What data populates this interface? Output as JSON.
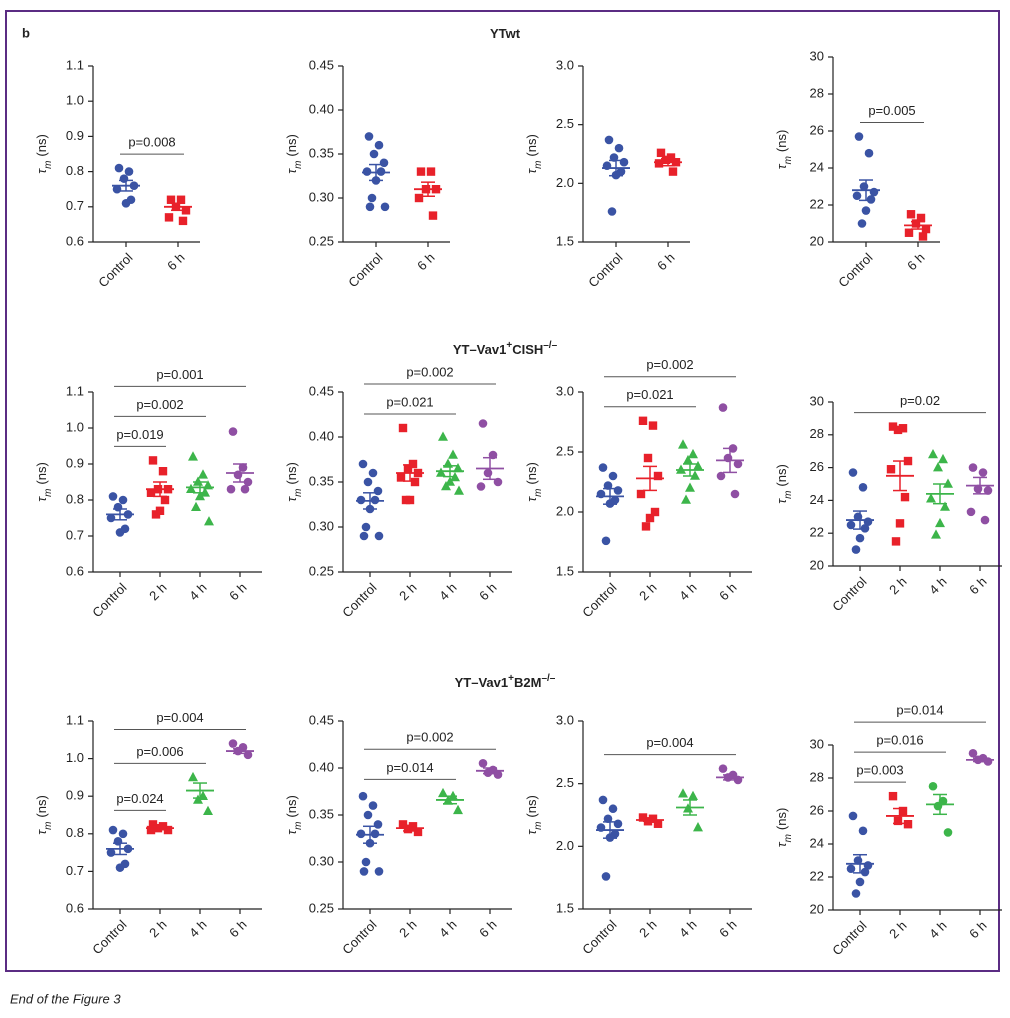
{
  "panel_label": "b",
  "caption": "End of the Figure 3",
  "row_titles": [
    [
      {
        "t": "YTwt"
      }
    ],
    [
      {
        "t": "YT–Vav1"
      },
      {
        "sup": "+"
      },
      {
        "t": "CISH"
      },
      {
        "sup": "–/–"
      }
    ],
    [
      {
        "t": "YT–Vav1"
      },
      {
        "sup": "+"
      },
      {
        "t": "B2M"
      },
      {
        "sup": "–/–"
      }
    ]
  ],
  "chart_data": [
    {
      "type": "dot",
      "ylabel": {
        "symbol": "τ",
        "subscript": "m",
        "unit": "(ns)"
      },
      "ylim": [
        0.6,
        1.1
      ],
      "yticks": [
        0.6,
        0.7,
        0.8,
        0.9,
        {
          "value": 1.0,
          "label": "1.0"
        },
        1.1
      ],
      "groups": [
        {
          "name": "Control",
          "color": "#3a53a4",
          "marker": "circle",
          "values": [
            0.81,
            0.8,
            0.78,
            0.76,
            0.75,
            0.72,
            0.71
          ],
          "mean": 0.76,
          "sem": 0.015
        },
        {
          "name": "6 h",
          "color": "#e8212a",
          "marker": "square",
          "values": [
            0.72,
            0.72,
            0.7,
            0.69,
            0.67,
            0.66
          ],
          "mean": 0.7,
          "sem": 0.01
        }
      ],
      "brackets": [
        {
          "between": [
            "Control",
            "6 h"
          ],
          "label": "p=0.008"
        }
      ]
    },
    {
      "type": "dot",
      "ylabel": {
        "symbol": "τ",
        "subscript": "m",
        "unit": "(ns)"
      },
      "ylim": [
        0.25,
        0.45
      ],
      "yticks": [
        0.25,
        {
          "value": 0.3,
          "label": "0.30"
        },
        0.35,
        {
          "value": 0.4,
          "label": "0.40"
        },
        0.45
      ],
      "groups": [
        {
          "name": "Control",
          "color": "#3a53a4",
          "marker": "circle",
          "values": [
            0.37,
            0.36,
            0.35,
            0.34,
            0.33,
            0.33,
            0.32,
            0.3,
            0.29,
            0.29
          ],
          "mean": 0.329,
          "sem": 0.009
        },
        {
          "name": "6 h",
          "color": "#e8212a",
          "marker": "square",
          "values": [
            0.33,
            0.33,
            0.31,
            0.31,
            0.3,
            0.28
          ],
          "mean": 0.31,
          "sem": 0.008
        }
      ],
      "brackets": []
    },
    {
      "type": "dot",
      "ylabel": {
        "symbol": "τ",
        "subscript": "m",
        "unit": "(ns)"
      },
      "ylim": [
        1.5,
        3.0
      ],
      "yticks": [
        1.5,
        {
          "value": 2,
          "label": "2.0"
        },
        2.5,
        {
          "value": 3,
          "label": "3.0"
        }
      ],
      "groups": [
        {
          "name": "Control",
          "color": "#3a53a4",
          "marker": "circle",
          "values": [
            2.37,
            2.3,
            2.22,
            2.18,
            2.15,
            2.1,
            2.07,
            1.76
          ],
          "mean": 2.13,
          "sem": 0.065
        },
        {
          "name": "6 h",
          "color": "#e8212a",
          "marker": "square",
          "values": [
            2.26,
            2.22,
            2.2,
            2.18,
            2.17,
            2.1
          ],
          "mean": 2.18,
          "sem": 0.03
        }
      ],
      "brackets": []
    },
    {
      "type": "dot",
      "ylabel": {
        "symbol": "τ",
        "subscript": "m",
        "unit": "(ns)"
      },
      "ylim": [
        20,
        30
      ],
      "yticks": [
        20,
        22,
        24,
        26,
        28,
        30
      ],
      "groups": [
        {
          "name": "Control",
          "color": "#3a53a4",
          "marker": "circle",
          "values": [
            25.7,
            24.8,
            23.0,
            22.7,
            22.5,
            22.3,
            21.7,
            21.0
          ],
          "mean": 22.8,
          "sem": 0.55
        },
        {
          "name": "6 h",
          "color": "#e8212a",
          "marker": "square",
          "values": [
            21.5,
            21.3,
            21.0,
            20.7,
            20.5,
            20.3
          ],
          "mean": 20.9,
          "sem": 0.2
        }
      ],
      "brackets": [
        {
          "between": [
            "Control",
            "6 h"
          ],
          "label": "p=0.005"
        }
      ]
    },
    {
      "type": "dot",
      "ylabel": {
        "symbol": "τ",
        "subscript": "m",
        "unit": "(ns)"
      },
      "ylim": [
        0.6,
        1.1
      ],
      "yticks": [
        0.6,
        0.7,
        0.8,
        0.9,
        {
          "value": 1.0,
          "label": "1.0"
        },
        1.1
      ],
      "groups": [
        {
          "name": "Control",
          "color": "#3a53a4",
          "marker": "circle",
          "values": [
            0.81,
            0.8,
            0.78,
            0.76,
            0.75,
            0.72,
            0.71
          ],
          "mean": 0.76,
          "sem": 0.015
        },
        {
          "name": "2 h",
          "color": "#e8212a",
          "marker": "square",
          "values": [
            0.91,
            0.88,
            0.83,
            0.83,
            0.82,
            0.8,
            0.77,
            0.76
          ],
          "mean": 0.83,
          "sem": 0.02
        },
        {
          "name": "4 h",
          "color": "#3cb54a",
          "marker": "triangle",
          "values": [
            0.92,
            0.87,
            0.85,
            0.84,
            0.83,
            0.82,
            0.81,
            0.78,
            0.74
          ],
          "mean": 0.835,
          "sem": 0.015
        },
        {
          "name": "6 h",
          "color": "#8f4fa3",
          "marker": "circle",
          "values": [
            0.99,
            0.89,
            0.87,
            0.85,
            0.83,
            0.83
          ],
          "mean": 0.875,
          "sem": 0.025
        }
      ],
      "brackets": [
        {
          "between": [
            "Control",
            "2 h"
          ],
          "label": "p=0.019"
        },
        {
          "between": [
            "Control",
            "4 h"
          ],
          "label": "p=0.002"
        },
        {
          "between": [
            "Control",
            "6 h"
          ],
          "label": "p=0.001"
        }
      ]
    },
    {
      "type": "dot",
      "ylabel": {
        "symbol": "τ",
        "subscript": "m",
        "unit": "(ns)"
      },
      "ylim": [
        0.25,
        0.45
      ],
      "yticks": [
        0.25,
        {
          "value": 0.3,
          "label": "0.30"
        },
        0.35,
        {
          "value": 0.4,
          "label": "0.40"
        },
        0.45
      ],
      "groups": [
        {
          "name": "Control",
          "color": "#3a53a4",
          "marker": "circle",
          "values": [
            0.37,
            0.36,
            0.35,
            0.34,
            0.33,
            0.33,
            0.32,
            0.3,
            0.29,
            0.29
          ],
          "mean": 0.329,
          "sem": 0.009
        },
        {
          "name": "2 h",
          "color": "#e8212a",
          "marker": "square",
          "values": [
            0.41,
            0.37,
            0.365,
            0.36,
            0.355,
            0.35,
            0.33,
            0.33
          ],
          "mean": 0.36,
          "sem": 0.009
        },
        {
          "name": "4 h",
          "color": "#3cb54a",
          "marker": "triangle",
          "values": [
            0.4,
            0.38,
            0.37,
            0.365,
            0.36,
            0.355,
            0.35,
            0.345,
            0.34
          ],
          "mean": 0.362,
          "sem": 0.006
        },
        {
          "name": "6 h",
          "color": "#8f4fa3",
          "marker": "circle",
          "values": [
            0.415,
            0.38,
            0.36,
            0.35,
            0.345
          ],
          "mean": 0.365,
          "sem": 0.012
        }
      ],
      "brackets": [
        {
          "between": [
            "Control",
            "4 h"
          ],
          "label": "p=0.021"
        },
        {
          "between": [
            "Control",
            "6 h"
          ],
          "label": "p=0.002"
        }
      ]
    },
    {
      "type": "dot",
      "ylabel": {
        "symbol": "τ",
        "subscript": "m",
        "unit": "(ns)"
      },
      "ylim": [
        1.5,
        3.0
      ],
      "yticks": [
        1.5,
        {
          "value": 2,
          "label": "2.0"
        },
        2.5,
        {
          "value": 3,
          "label": "3.0"
        }
      ],
      "groups": [
        {
          "name": "Control",
          "color": "#3a53a4",
          "marker": "circle",
          "values": [
            2.37,
            2.3,
            2.22,
            2.18,
            2.15,
            2.1,
            2.07,
            1.76
          ],
          "mean": 2.13,
          "sem": 0.065
        },
        {
          "name": "2 h",
          "color": "#e8212a",
          "marker": "square",
          "values": [
            2.76,
            2.72,
            2.45,
            2.3,
            2.15,
            2.0,
            1.95,
            1.88
          ],
          "mean": 2.28,
          "sem": 0.1
        },
        {
          "name": "4 h",
          "color": "#3cb54a",
          "marker": "triangle",
          "values": [
            2.56,
            2.48,
            2.43,
            2.38,
            2.35,
            2.3,
            2.2,
            2.1
          ],
          "mean": 2.35,
          "sem": 0.05
        },
        {
          "name": "6 h",
          "color": "#8f4fa3",
          "marker": "circle",
          "values": [
            2.87,
            2.53,
            2.45,
            2.4,
            2.3,
            2.15
          ],
          "mean": 2.43,
          "sem": 0.1
        }
      ],
      "brackets": [
        {
          "between": [
            "Control",
            "4 h"
          ],
          "label": "p=0.021"
        },
        {
          "between": [
            "Control",
            "6 h"
          ],
          "label": "p=0.002"
        }
      ]
    },
    {
      "type": "dot",
      "ylabel": {
        "symbol": "τ",
        "subscript": "m",
        "unit": "(ns)"
      },
      "ylim": [
        20,
        30
      ],
      "yticks": [
        20,
        22,
        24,
        26,
        28,
        30
      ],
      "groups": [
        {
          "name": "Control",
          "color": "#3a53a4",
          "marker": "circle",
          "values": [
            25.7,
            24.8,
            23.0,
            22.7,
            22.5,
            22.3,
            21.7,
            21.0
          ],
          "mean": 22.8,
          "sem": 0.55
        },
        {
          "name": "2 h",
          "color": "#e8212a",
          "marker": "square",
          "values": [
            28.5,
            28.4,
            28.3,
            26.4,
            25.9,
            24.2,
            22.6,
            21.5
          ],
          "mean": 25.5,
          "sem": 0.9
        },
        {
          "name": "4 h",
          "color": "#3cb54a",
          "marker": "triangle",
          "values": [
            26.8,
            26.5,
            26.0,
            25.0,
            24.1,
            23.6,
            22.6,
            21.9
          ],
          "mean": 24.4,
          "sem": 0.6
        },
        {
          "name": "6 h",
          "color": "#8f4fa3",
          "marker": "circle",
          "values": [
            26.0,
            25.7,
            24.7,
            24.6,
            23.3,
            22.8
          ],
          "mean": 24.9,
          "sem": 0.5
        }
      ],
      "brackets": [
        {
          "between": [
            "Control",
            "6 h"
          ],
          "label": "p=0.02"
        }
      ]
    },
    {
      "type": "dot",
      "ylabel": {
        "symbol": "τ",
        "subscript": "m",
        "unit": "(ns)"
      },
      "ylim": [
        0.6,
        1.1
      ],
      "yticks": [
        0.6,
        0.7,
        0.8,
        0.9,
        {
          "value": 1.0,
          "label": "1.0"
        },
        1.1
      ],
      "groups": [
        {
          "name": "Control",
          "color": "#3a53a4",
          "marker": "circle",
          "values": [
            0.81,
            0.8,
            0.78,
            0.76,
            0.75,
            0.72,
            0.71
          ],
          "mean": 0.76,
          "sem": 0.015
        },
        {
          "name": "2 h",
          "color": "#e8212a",
          "marker": "square",
          "values": [
            0.825,
            0.82,
            0.815,
            0.81,
            0.81
          ],
          "mean": 0.815,
          "sem": 0.004
        },
        {
          "name": "4 h",
          "color": "#3cb54a",
          "marker": "triangle",
          "values": [
            0.95,
            0.9,
            0.89,
            0.86
          ],
          "mean": 0.915,
          "sem": 0.02
        },
        {
          "name": "6 h",
          "color": "#8f4fa3",
          "marker": "circle",
          "values": [
            1.04,
            1.03,
            1.02,
            1.01
          ],
          "mean": 1.02,
          "sem": 0.006
        }
      ],
      "brackets": [
        {
          "between": [
            "Control",
            "2 h"
          ],
          "label": "p=0.024"
        },
        {
          "between": [
            "Control",
            "4 h"
          ],
          "label": "p=0.006"
        },
        {
          "between": [
            "Control",
            "6 h"
          ],
          "label": "p=0.004"
        }
      ]
    },
    {
      "type": "dot",
      "ylabel": {
        "symbol": "τ",
        "subscript": "m",
        "unit": "(ns)"
      },
      "ylim": [
        0.25,
        0.45
      ],
      "yticks": [
        0.25,
        {
          "value": 0.3,
          "label": "0.30"
        },
        0.35,
        {
          "value": 0.4,
          "label": "0.40"
        },
        0.45
      ],
      "groups": [
        {
          "name": "Control",
          "color": "#3a53a4",
          "marker": "circle",
          "values": [
            0.37,
            0.36,
            0.35,
            0.34,
            0.33,
            0.33,
            0.32,
            0.3,
            0.29,
            0.29
          ],
          "mean": 0.329,
          "sem": 0.009
        },
        {
          "name": "2 h",
          "color": "#e8212a",
          "marker": "square",
          "values": [
            0.34,
            0.338,
            0.335,
            0.332
          ],
          "mean": 0.336,
          "sem": 0.003
        },
        {
          "name": "4 h",
          "color": "#3cb54a",
          "marker": "triangle",
          "values": [
            0.373,
            0.37,
            0.365,
            0.355
          ],
          "mean": 0.366,
          "sem": 0.004
        },
        {
          "name": "6 h",
          "color": "#8f4fa3",
          "marker": "circle",
          "values": [
            0.405,
            0.398,
            0.395,
            0.393
          ],
          "mean": 0.397,
          "sem": 0.003
        }
      ],
      "brackets": [
        {
          "between": [
            "Control",
            "4 h"
          ],
          "label": "p=0.014"
        },
        {
          "between": [
            "Control",
            "6 h"
          ],
          "label": "p=0.002"
        }
      ]
    },
    {
      "type": "dot",
      "ylabel": {
        "symbol": "τ",
        "subscript": "m",
        "unit": "(ns)"
      },
      "ylim": [
        1.5,
        3.0
      ],
      "yticks": [
        1.5,
        {
          "value": 2,
          "label": "2.0"
        },
        2.5,
        {
          "value": 3,
          "label": "3.0"
        }
      ],
      "groups": [
        {
          "name": "Control",
          "color": "#3a53a4",
          "marker": "circle",
          "values": [
            2.37,
            2.3,
            2.22,
            2.18,
            2.15,
            2.1,
            2.07,
            1.76
          ],
          "mean": 2.13,
          "sem": 0.065
        },
        {
          "name": "2 h",
          "color": "#e8212a",
          "marker": "square",
          "values": [
            2.23,
            2.22,
            2.2,
            2.18
          ],
          "mean": 2.21,
          "sem": 0.01
        },
        {
          "name": "4 h",
          "color": "#3cb54a",
          "marker": "triangle",
          "values": [
            2.42,
            2.4,
            2.3,
            2.15
          ],
          "mean": 2.31,
          "sem": 0.06
        },
        {
          "name": "6 h",
          "color": "#8f4fa3",
          "marker": "circle",
          "values": [
            2.62,
            2.57,
            2.55,
            2.53
          ],
          "mean": 2.55,
          "sem": 0.02
        }
      ],
      "brackets": [
        {
          "between": [
            "Control",
            "6 h"
          ],
          "label": "p=0.004"
        }
      ]
    },
    {
      "type": "dot",
      "ylabel": {
        "symbol": "τ",
        "subscript": "m",
        "unit": "(ns)"
      },
      "ylim": [
        20,
        30
      ],
      "yticks": [
        20,
        22,
        24,
        26,
        28,
        30
      ],
      "groups": [
        {
          "name": "Control",
          "color": "#3a53a4",
          "marker": "circle",
          "values": [
            25.7,
            24.8,
            23.0,
            22.7,
            22.5,
            22.3,
            21.7,
            21.0
          ],
          "mean": 22.8,
          "sem": 0.55
        },
        {
          "name": "2 h",
          "color": "#e8212a",
          "marker": "square",
          "values": [
            26.9,
            26.0,
            25.4,
            25.2
          ],
          "mean": 25.7,
          "sem": 0.45
        },
        {
          "name": "4 h",
          "color": "#3cb54a",
          "marker": "circle",
          "values": [
            27.5,
            26.6,
            26.3,
            24.7
          ],
          "mean": 26.4,
          "sem": 0.6
        },
        {
          "name": "6 h",
          "color": "#8f4fa3",
          "marker": "circle",
          "values": [
            29.5,
            29.2,
            29.1,
            29.0
          ],
          "mean": 29.1,
          "sem": 0.1
        }
      ],
      "brackets": [
        {
          "between": [
            "Control",
            "2 h"
          ],
          "label": "p=0.003"
        },
        {
          "between": [
            "Control",
            "4 h"
          ],
          "label": "p=0.016"
        },
        {
          "between": [
            "Control",
            "6 h"
          ],
          "label": "p=0.014"
        }
      ]
    }
  ]
}
